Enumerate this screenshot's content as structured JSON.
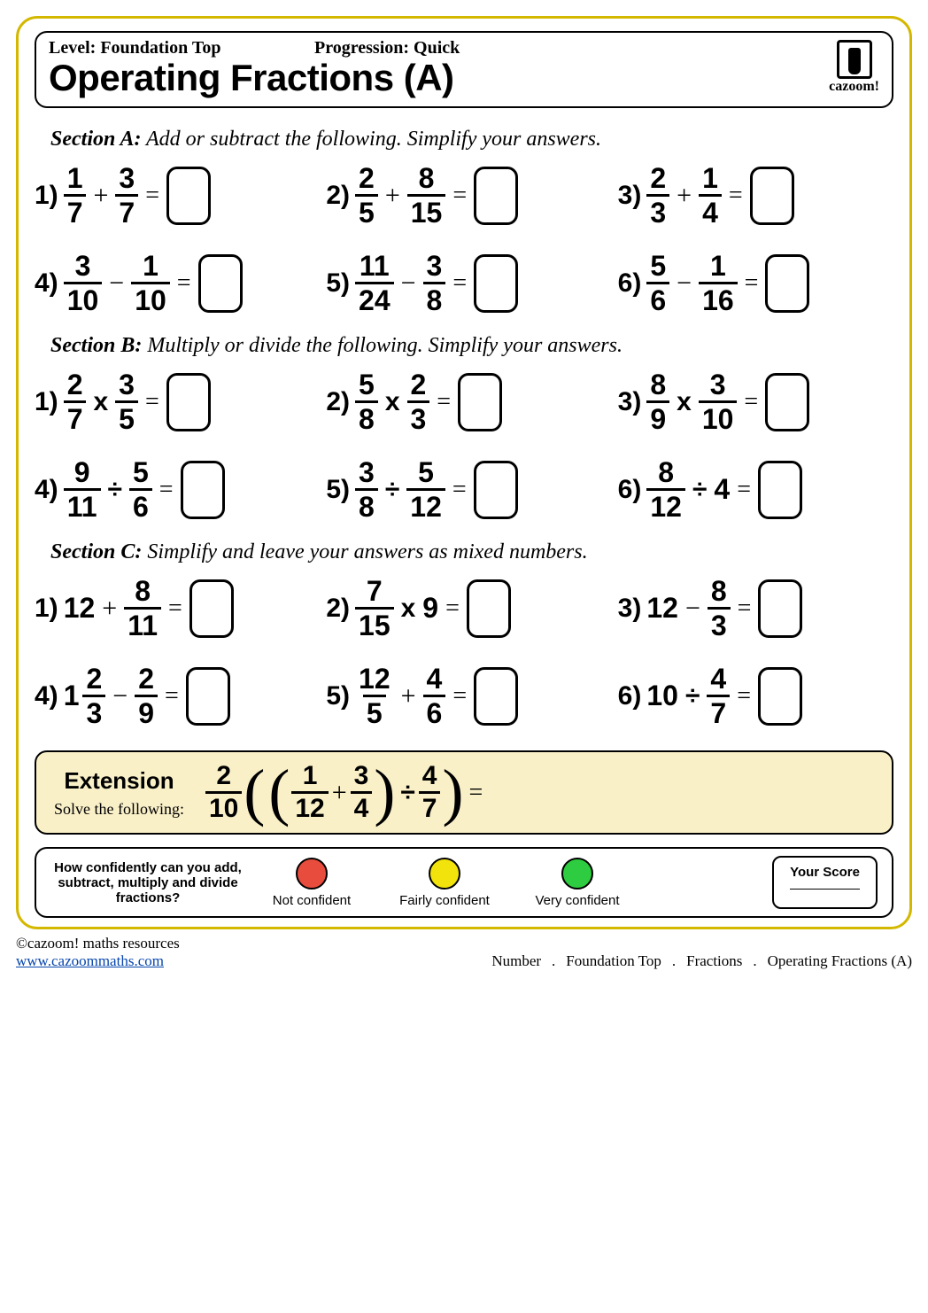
{
  "header": {
    "level_label": "Level:",
    "level_value": "Foundation Top",
    "progression_label": "Progression:",
    "progression_value": "Quick",
    "title": "Operating Fractions (A)",
    "brand": "cazoom!"
  },
  "sections": [
    {
      "id": "A",
      "heading_bold": "Section A:",
      "heading_rest": " Add or subtract the following. Simplify your answers.",
      "problems": [
        {
          "n": "1)",
          "a": {
            "type": "frac",
            "num": "1",
            "den": "7"
          },
          "op": "+",
          "b": {
            "type": "frac",
            "num": "3",
            "den": "7"
          }
        },
        {
          "n": "2)",
          "a": {
            "type": "frac",
            "num": "2",
            "den": "5"
          },
          "op": "+",
          "b": {
            "type": "frac",
            "num": "8",
            "den": "15"
          }
        },
        {
          "n": "3)",
          "a": {
            "type": "frac",
            "num": "2",
            "den": "3"
          },
          "op": "+",
          "b": {
            "type": "frac",
            "num": "1",
            "den": "4"
          }
        },
        {
          "n": "4)",
          "a": {
            "type": "frac",
            "num": "3",
            "den": "10"
          },
          "op": "−",
          "b": {
            "type": "frac",
            "num": "1",
            "den": "10"
          }
        },
        {
          "n": "5)",
          "a": {
            "type": "frac",
            "num": "11",
            "den": "24"
          },
          "op": "−",
          "b": {
            "type": "frac",
            "num": "3",
            "den": "8"
          }
        },
        {
          "n": "6)",
          "a": {
            "type": "frac",
            "num": "5",
            "den": "6"
          },
          "op": "−",
          "b": {
            "type": "frac",
            "num": "1",
            "den": "16"
          }
        }
      ]
    },
    {
      "id": "B",
      "heading_bold": "Section B:",
      "heading_rest": " Multiply or divide the following. Simplify your answers.",
      "problems": [
        {
          "n": "1)",
          "a": {
            "type": "frac",
            "num": "2",
            "den": "7"
          },
          "op": "x",
          "b": {
            "type": "frac",
            "num": "3",
            "den": "5"
          }
        },
        {
          "n": "2)",
          "a": {
            "type": "frac",
            "num": "5",
            "den": "8"
          },
          "op": "x",
          "b": {
            "type": "frac",
            "num": "2",
            "den": "3"
          }
        },
        {
          "n": "3)",
          "a": {
            "type": "frac",
            "num": "8",
            "den": "9"
          },
          "op": "x",
          "b": {
            "type": "frac",
            "num": "3",
            "den": "10"
          }
        },
        {
          "n": "4)",
          "a": {
            "type": "frac",
            "num": "9",
            "den": "11"
          },
          "op": "÷",
          "b": {
            "type": "frac",
            "num": "5",
            "den": "6"
          }
        },
        {
          "n": "5)",
          "a": {
            "type": "frac",
            "num": "3",
            "den": "8"
          },
          "op": "÷",
          "b": {
            "type": "frac",
            "num": "5",
            "den": "12"
          }
        },
        {
          "n": "6)",
          "a": {
            "type": "frac",
            "num": "8",
            "den": "12"
          },
          "op": "÷",
          "b": {
            "type": "int",
            "val": "4"
          }
        }
      ]
    },
    {
      "id": "C",
      "heading_bold": "Section C:",
      "heading_rest": " Simplify and leave your answers as mixed numbers.",
      "problems": [
        {
          "n": "1)",
          "a": {
            "type": "int",
            "val": "12"
          },
          "op": "+",
          "b": {
            "type": "frac",
            "num": "8",
            "den": "11"
          }
        },
        {
          "n": "2)",
          "a": {
            "type": "frac",
            "num": "7",
            "den": "15"
          },
          "op": "x",
          "b": {
            "type": "int",
            "val": "9"
          }
        },
        {
          "n": "3)",
          "a": {
            "type": "int",
            "val": "12"
          },
          "op": "−",
          "b": {
            "type": "frac",
            "num": "8",
            "den": "3"
          }
        },
        {
          "n": "4)",
          "a": {
            "type": "mixed",
            "whole": "1",
            "num": "2",
            "den": "3"
          },
          "op": "−",
          "b": {
            "type": "frac",
            "num": "2",
            "den": "9"
          }
        },
        {
          "n": "5)",
          "a": {
            "type": "frac",
            "num": "12",
            "den": "5"
          },
          "op": "+",
          "b": {
            "type": "frac",
            "num": "4",
            "den": "6"
          }
        },
        {
          "n": "6)",
          "a": {
            "type": "int",
            "val": "10"
          },
          "op": "÷",
          "b": {
            "type": "frac",
            "num": "4",
            "den": "7"
          }
        }
      ]
    }
  ],
  "extension": {
    "title": "Extension",
    "subtitle": "Solve the following:",
    "outer": {
      "num": "2",
      "den": "10"
    },
    "inner_a": {
      "num": "1",
      "den": "12"
    },
    "inner_op": "+",
    "inner_b": {
      "num": "3",
      "den": "4"
    },
    "div_op": "÷",
    "div_by": {
      "num": "4",
      "den": "7"
    },
    "eq": "="
  },
  "confidence": {
    "question": "How confidently can you add, subtract, multiply and divide fractions?",
    "levels": [
      {
        "label": "Not confident",
        "color": "#e74c3c"
      },
      {
        "label": "Fairly confident",
        "color": "#f1e30b"
      },
      {
        "label": "Very confident",
        "color": "#2ecc40"
      }
    ],
    "score_label": "Your Score"
  },
  "footer": {
    "copyright": "©cazoom! maths resources",
    "url": "www.cazoommaths.com",
    "breadcrumb": [
      "Number",
      "Foundation Top",
      "Fractions",
      "Operating Fractions (A)"
    ]
  },
  "styles": {
    "page_border_color": "#d4b800",
    "extension_bg": "#faf0c8"
  }
}
